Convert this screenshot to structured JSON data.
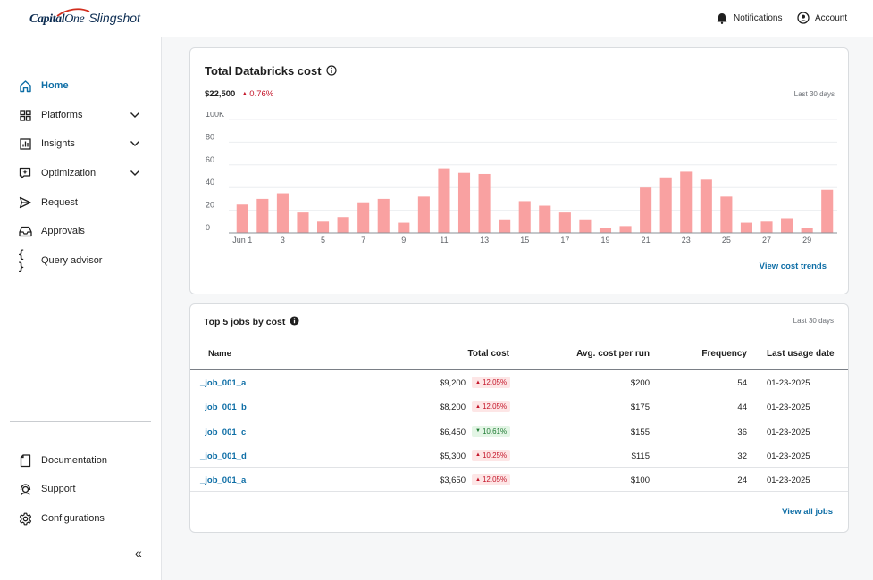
{
  "header": {
    "brand_capital": "Capital",
    "brand_one": "One",
    "brand_product": "Slingshot",
    "notifications_label": "Notifications",
    "account_label": "Account"
  },
  "sidebar": {
    "items": [
      {
        "label": "Home",
        "icon": "home-icon",
        "active": true,
        "expandable": false
      },
      {
        "label": "Platforms",
        "icon": "grid-icon",
        "active": false,
        "expandable": true
      },
      {
        "label": "Insights",
        "icon": "bar-chart-icon",
        "active": false,
        "expandable": true
      },
      {
        "label": "Optimization",
        "icon": "sparkle-icon",
        "active": false,
        "expandable": true
      },
      {
        "label": "Request",
        "icon": "send-icon",
        "active": false,
        "expandable": false
      },
      {
        "label": "Approvals",
        "icon": "inbox-icon",
        "active": false,
        "expandable": false
      },
      {
        "label": "Query advisor",
        "icon": "braces-icon",
        "active": false,
        "expandable": false
      }
    ],
    "bottom_items": [
      {
        "label": "Documentation",
        "icon": "document-icon"
      },
      {
        "label": "Support",
        "icon": "headset-icon"
      },
      {
        "label": "Configurations",
        "icon": "gear-icon"
      }
    ],
    "collapse_label": "«"
  },
  "cost_card": {
    "title": "Total Databricks cost",
    "total": "$22,500",
    "change": "0.76%",
    "change_direction": "up",
    "period": "Last 30 days",
    "link": "View cost trends"
  },
  "chart_data": {
    "type": "bar",
    "title": "Total Databricks cost",
    "color": "#f9a1a1",
    "y_ticks": [
      "100K",
      "80",
      "60",
      "40",
      "20",
      "0"
    ],
    "ylim": [
      0,
      100
    ],
    "x_tick_labels": [
      "Jun 1",
      "3",
      "5",
      "7",
      "9",
      "11",
      "13",
      "15",
      "17",
      "19",
      "21",
      "23",
      "25",
      "27",
      "29"
    ],
    "categories": [
      1,
      2,
      3,
      4,
      5,
      6,
      7,
      8,
      9,
      10,
      11,
      12,
      13,
      14,
      15,
      16,
      17,
      18,
      19,
      20,
      21,
      22,
      23,
      24,
      25,
      26,
      27,
      28,
      29,
      30
    ],
    "values": [
      25,
      30,
      35,
      18,
      10,
      14,
      27,
      30,
      9,
      32,
      57,
      53,
      52,
      12,
      28,
      24,
      18,
      12,
      4,
      6,
      40,
      49,
      54,
      47,
      32,
      9,
      10,
      13,
      4,
      38
    ]
  },
  "jobs_card": {
    "title": "Top 5 jobs by cost",
    "period": "Last 30 days",
    "columns": [
      "Name",
      "Total cost",
      "Avg. cost per run",
      "Frequency",
      "Last usage date"
    ],
    "rows": [
      {
        "name": "_job_001_a",
        "total": "$9,200",
        "change": "12.05%",
        "dir": "up",
        "avg": "$200",
        "freq": "54",
        "date": "01-23-2025"
      },
      {
        "name": "_job_001_b",
        "total": "$8,200",
        "change": "12.05%",
        "dir": "up",
        "avg": "$175",
        "freq": "44",
        "date": "01-23-2025"
      },
      {
        "name": "_job_001_c",
        "total": "$6,450",
        "change": "10.61%",
        "dir": "down",
        "avg": "$155",
        "freq": "36",
        "date": "01-23-2025"
      },
      {
        "name": "_job_001_d",
        "total": "$5,300",
        "change": "10.25%",
        "dir": "up",
        "avg": "$115",
        "freq": "32",
        "date": "01-23-2025"
      },
      {
        "name": "_job_001_a",
        "total": "$3,650",
        "change": "12.05%",
        "dir": "up",
        "avg": "$100",
        "freq": "24",
        "date": "01-23-2025"
      }
    ],
    "link": "View all jobs"
  }
}
